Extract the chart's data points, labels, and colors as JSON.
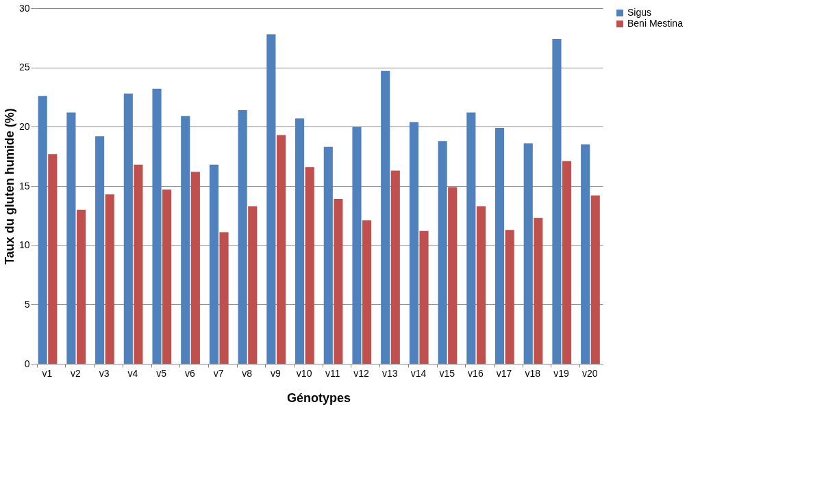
{
  "chart_data": {
    "type": "bar",
    "xlabel": "Génotypes",
    "ylabel": "Taux du gluten humide (%)",
    "categories": [
      "v1",
      "v2",
      "v3",
      "v4",
      "v5",
      "v6",
      "v7",
      "v8",
      "v9",
      "v10",
      "v11",
      "v12",
      "v13",
      "v14",
      "v15",
      "v16",
      "v17",
      "v18",
      "v19",
      "v20"
    ],
    "series": [
      {
        "name": "Sigus",
        "color": "#4f81bd",
        "values": [
          22.6,
          21.2,
          19.2,
          22.8,
          23.2,
          20.9,
          16.8,
          21.4,
          27.8,
          20.7,
          18.3,
          20.0,
          24.7,
          20.4,
          18.8,
          21.2,
          19.9,
          18.6,
          27.4,
          18.5
        ]
      },
      {
        "name": "Beni Mestina",
        "color": "#c0504d",
        "values": [
          17.7,
          13.0,
          14.3,
          16.8,
          14.7,
          16.2,
          11.1,
          13.3,
          19.3,
          16.6,
          13.9,
          12.1,
          16.3,
          11.2,
          14.9,
          13.3,
          11.3,
          12.3,
          17.1,
          14.2
        ]
      }
    ],
    "ylim": [
      0,
      30
    ],
    "yticks": [
      0,
      5,
      10,
      15,
      20,
      25,
      30
    ],
    "grid": "y",
    "legend": "right"
  }
}
